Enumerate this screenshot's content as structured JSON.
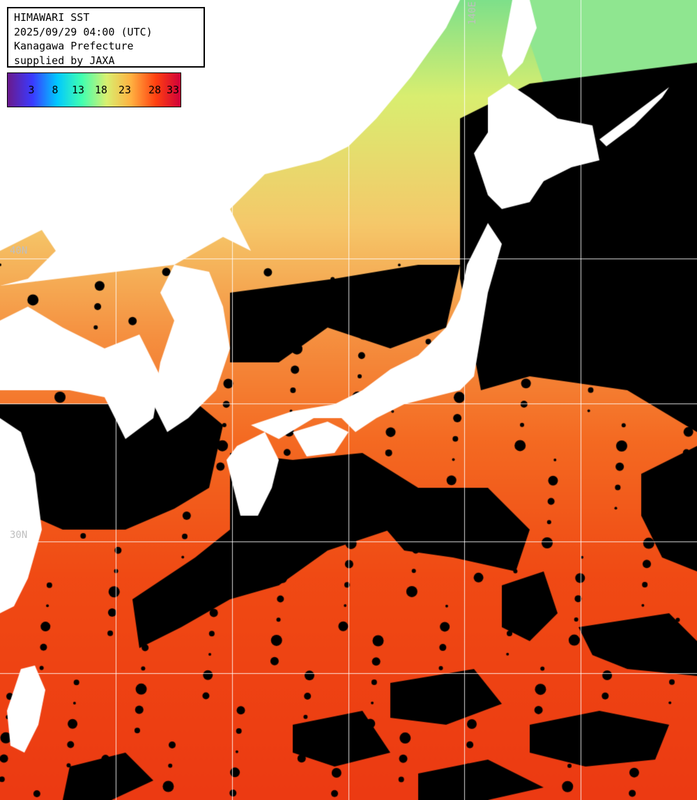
{
  "header": {
    "line1": "HIMAWARI SST",
    "line2": "2025/09/29 04:00 (UTC)",
    "line3": "Kanagawa Prefecture",
    "line4": "supplied by JAXA"
  },
  "legend": {
    "ticks": [
      "3",
      "8",
      "13",
      "18",
      "23",
      "28",
      "33"
    ],
    "colors": [
      "#6a1a8c",
      "#3a3aff",
      "#00c8ff",
      "#40ffb0",
      "#d8f070",
      "#ffb040",
      "#ff4010",
      "#d0003a"
    ]
  },
  "grid": {
    "labels": {
      "lat40": "40N",
      "lat30": "30N",
      "lon140": "140E"
    }
  },
  "palette": {
    "land": "#ffffff",
    "cloud": "#000000",
    "gridline": "#ffffff"
  }
}
